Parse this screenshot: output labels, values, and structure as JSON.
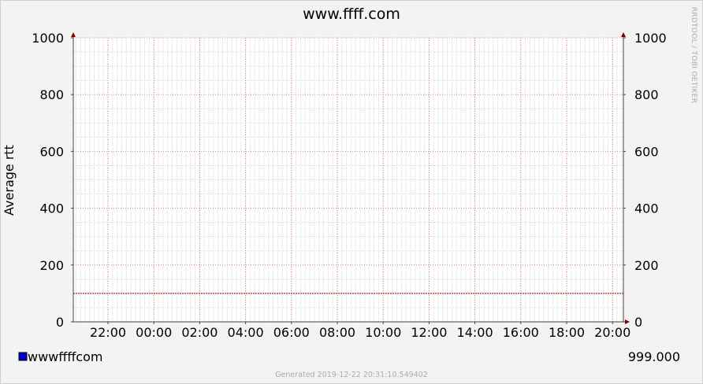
{
  "chart_data": {
    "type": "line",
    "title": "www.ffff.com",
    "ylabel": "Average rtt",
    "xlabel": "",
    "x_ticks": [
      "22:00",
      "00:00",
      "02:00",
      "04:00",
      "06:00",
      "08:00",
      "10:00",
      "12:00",
      "14:00",
      "16:00",
      "18:00",
      "20:00"
    ],
    "y_ticks": [
      0,
      200,
      400,
      600,
      800,
      1000
    ],
    "right_y_ticks": [
      0,
      200,
      400,
      600,
      800,
      1000
    ],
    "ylim": [
      0,
      1000
    ],
    "grid": true,
    "hrule": {
      "value": 100,
      "color": "#990000"
    },
    "series": [
      {
        "name": "wwwffffcom",
        "color": "#0000cc",
        "values": []
      }
    ],
    "legend": {
      "position": "bottom-left",
      "entries": [
        {
          "label": "wwwffffcom",
          "color": "#0000cc",
          "current_value": "999.000"
        }
      ]
    },
    "watermark": "RRDTOOL / TOBI OETIKER",
    "footer": "Generated 2019-12-22 20:31:10.549402"
  },
  "colors": {
    "background": "#f3f3f3",
    "canvas": "#ffffff",
    "major_grid": "#e08080",
    "minor_grid": "#d8d8d8",
    "axis": "#444444",
    "arrow": "#880000"
  }
}
